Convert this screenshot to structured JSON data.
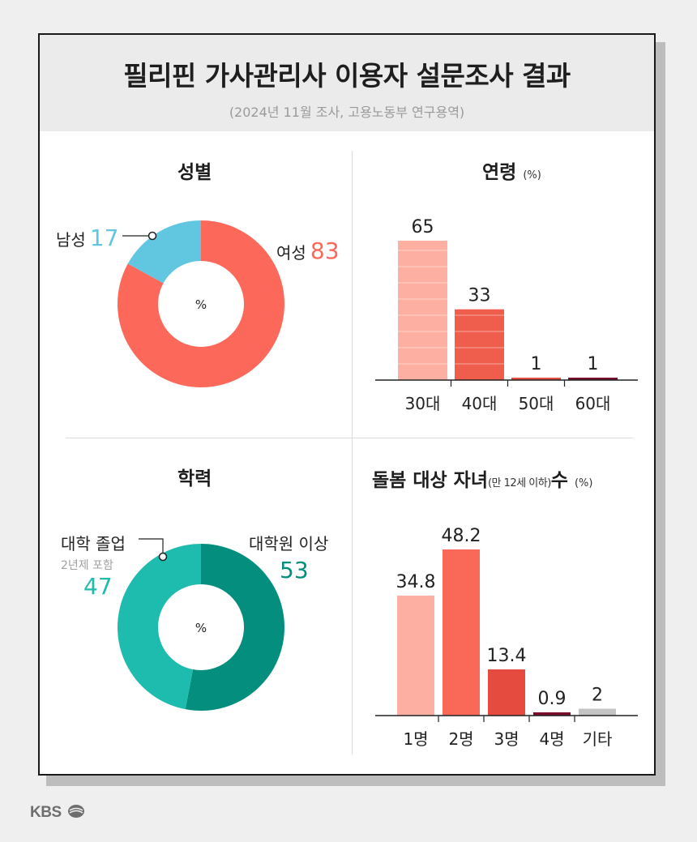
{
  "header": {
    "title": "필리핀 가사관리사 이용자 설문조사 결과",
    "subtitle": "(2024년 11월 조사, 고용노동부 연구용역)"
  },
  "brand": {
    "logo_text": "KBS",
    "logo_icon": "kbs-wave-icon"
  },
  "colors": {
    "female": "#fc6859",
    "male": "#61c6e0",
    "edu_college": "#1dbcae",
    "edu_grad": "#048e7e",
    "bar_light": "#fdb0a2",
    "bar_mid": "#fa6858",
    "bar_dark": "#e54b3e",
    "bar_darker": "#7c0d2a",
    "bar_gray": "#c4c4c4"
  },
  "sections": {
    "gender": {
      "title": "성별"
    },
    "age": {
      "title": "연령",
      "unit": "(%)"
    },
    "education": {
      "title": "학력"
    },
    "children": {
      "title": "돌봄 대상 자녀",
      "subtitle": "(만 12세 이하)",
      "title_suffix": "수",
      "unit": "(%)"
    }
  },
  "chart_data": [
    {
      "type": "pie",
      "title": "성별",
      "center_label": "%",
      "categories": [
        "남성",
        "여성"
      ],
      "values": [
        17,
        83
      ],
      "colors": [
        "#61c6e0",
        "#fc6859"
      ]
    },
    {
      "type": "bar",
      "title": "연령",
      "unit": "(%)",
      "categories": [
        "30대",
        "40대",
        "50대",
        "60대"
      ],
      "values": [
        65,
        33,
        1,
        1
      ],
      "value_labels": [
        "65",
        "33",
        "1",
        "1"
      ],
      "colors": [
        "#fdb0a2",
        "#ef5d4d",
        "#e54b3e",
        "#7c0d2a"
      ],
      "ylim": [
        0,
        65
      ]
    },
    {
      "type": "pie",
      "title": "학력",
      "center_label": "%",
      "categories": [
        "대학 졸업",
        "대학원 이상"
      ],
      "category_notes": [
        "2년제 포함",
        ""
      ],
      "values": [
        47,
        53
      ],
      "colors": [
        "#1dbcae",
        "#048e7e"
      ]
    },
    {
      "type": "bar",
      "title": "돌봄 대상 자녀(만 12세 이하)수",
      "unit": "(%)",
      "categories": [
        "1명",
        "2명",
        "3명",
        "4명",
        "기타"
      ],
      "values": [
        34.8,
        48.2,
        13.4,
        0.9,
        2
      ],
      "value_labels": [
        "34.8",
        "48.2",
        "13.4",
        "0.9",
        "2"
      ],
      "colors": [
        "#fdb0a2",
        "#fa6858",
        "#e54b3e",
        "#7c0d2a",
        "#c4c4c4"
      ],
      "ylim": [
        0,
        48.2
      ]
    }
  ]
}
